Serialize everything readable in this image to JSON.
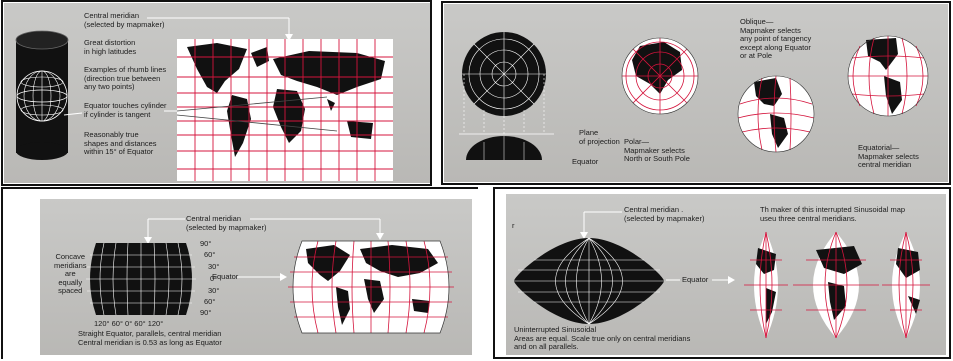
{
  "mercator": {
    "central_meridian": "Central meridian\n(selected by mapmaker)",
    "distortion": "Great distortion\nin high latitudes",
    "rhumb": "Examples of rhumb lines\n(direction true between\nany two points)",
    "equator_note": "Equator touches cylinder\nif cylinder is tangent",
    "true_shapes": "Reasonably true\nshapes and distances\nwithin 15° of Equator"
  },
  "azimuthal": {
    "plane": "Plane\nof projection",
    "equator": "Equator",
    "polar": "Polar—\nMapmaker selects\nNorth or South Pole",
    "oblique": "Oblique—\nMapmaker selects\nany point of tangency\nexcept along Equator\nor at Pole",
    "equatorial": "Equatorial—\nMapmaker selects\ncentral meridian"
  },
  "robinson": {
    "central_meridian": "Central meridian\n(selected by mapmaker)",
    "concave": "Concave\nmeridians\nare\nequally\nspaced",
    "lat_labels": [
      "90°",
      "60°",
      "30°",
      "0°",
      "30°",
      "60°",
      "90°"
    ],
    "equator": "Equator",
    "lon_labels": "120° 60° 0° 60° 120°",
    "caption": "Straight Equator, parallels, central meridian\nCentral meridian is 0.53 as long as Equator"
  },
  "sinusoidal": {
    "central_meridian": "Central meridian .\n(selected by mapmaker)",
    "mark": "r",
    "maker_note": "Th   maker of this interrupted Sinusoidal map\nuseu three central meridians.",
    "equator": "Equator",
    "caption": "Uninterrupted Sinusoidal\nAreas are equal. Scale true only on central meridians\nand on all parallels."
  }
}
